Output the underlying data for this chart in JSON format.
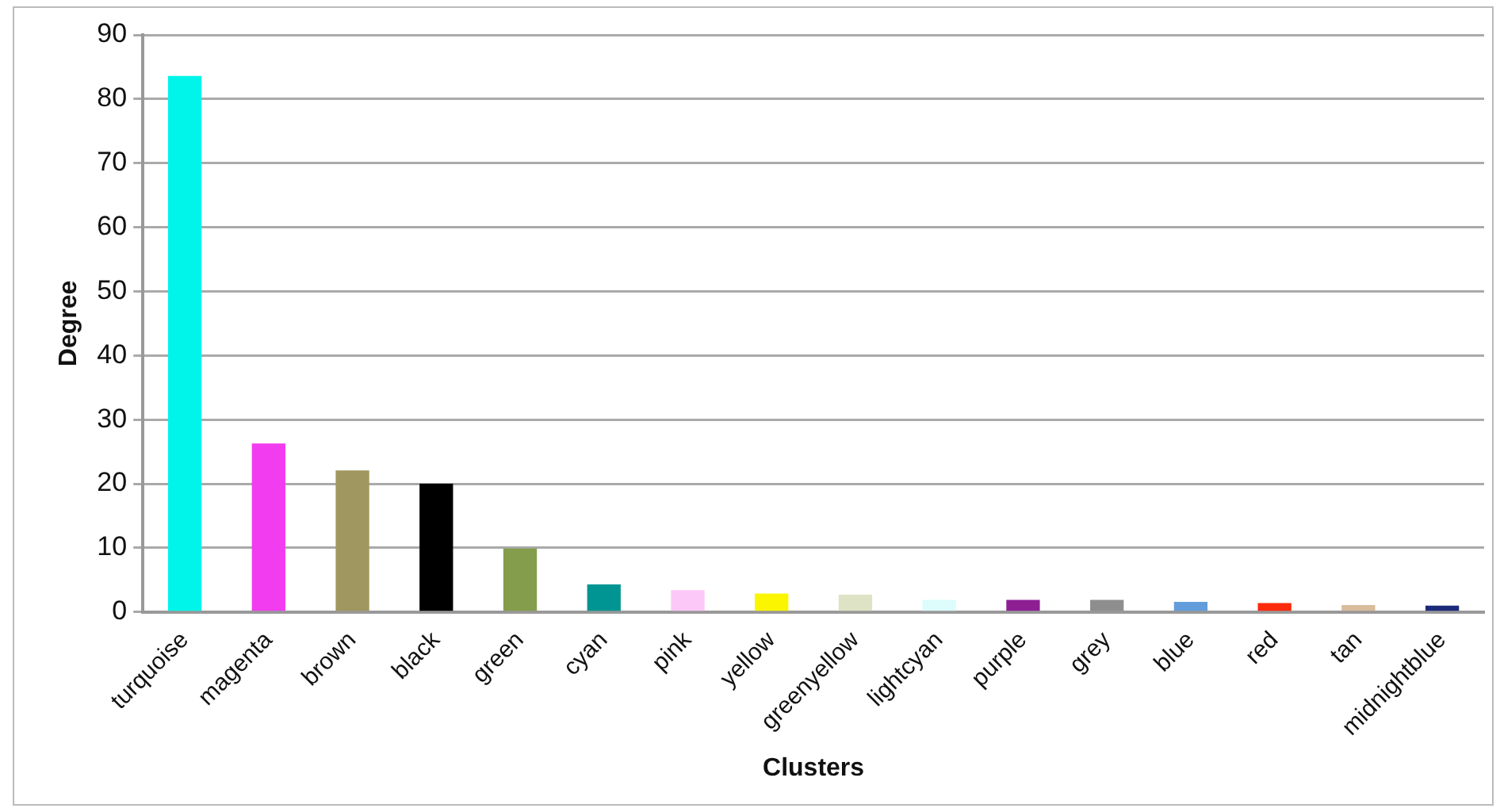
{
  "chart_data": {
    "type": "bar",
    "xlabel": "Clusters",
    "ylabel": "Degree",
    "categories": [
      "turquoise",
      "magenta",
      "brown",
      "black",
      "green",
      "cyan",
      "pink",
      "yellow",
      "greenyellow",
      "lightcyan",
      "purple",
      "grey",
      "blue",
      "red",
      "tan",
      "midnightblue"
    ],
    "values": [
      83.6,
      26.3,
      22.1,
      20,
      9.9,
      4.3,
      3.4,
      2.9,
      2.7,
      1.9,
      1.9,
      1.9,
      1.6,
      1.4,
      1.1,
      1.0
    ],
    "colors": [
      "#00f5ea",
      "#f23cef",
      "#a0965f",
      "#000000",
      "#849d4c",
      "#009593",
      "#fcc8f8",
      "#fcf500",
      "#dde3c4",
      "#ddfcfc",
      "#8e1f93",
      "#8e8e8e",
      "#629cdb",
      "#fb2a0c",
      "#d8bc9b",
      "#1c2a7a"
    ],
    "ylim": [
      0,
      90
    ],
    "yticks": [
      0,
      10,
      20,
      30,
      40,
      50,
      60,
      70,
      80,
      90
    ],
    "grid": "y"
  }
}
